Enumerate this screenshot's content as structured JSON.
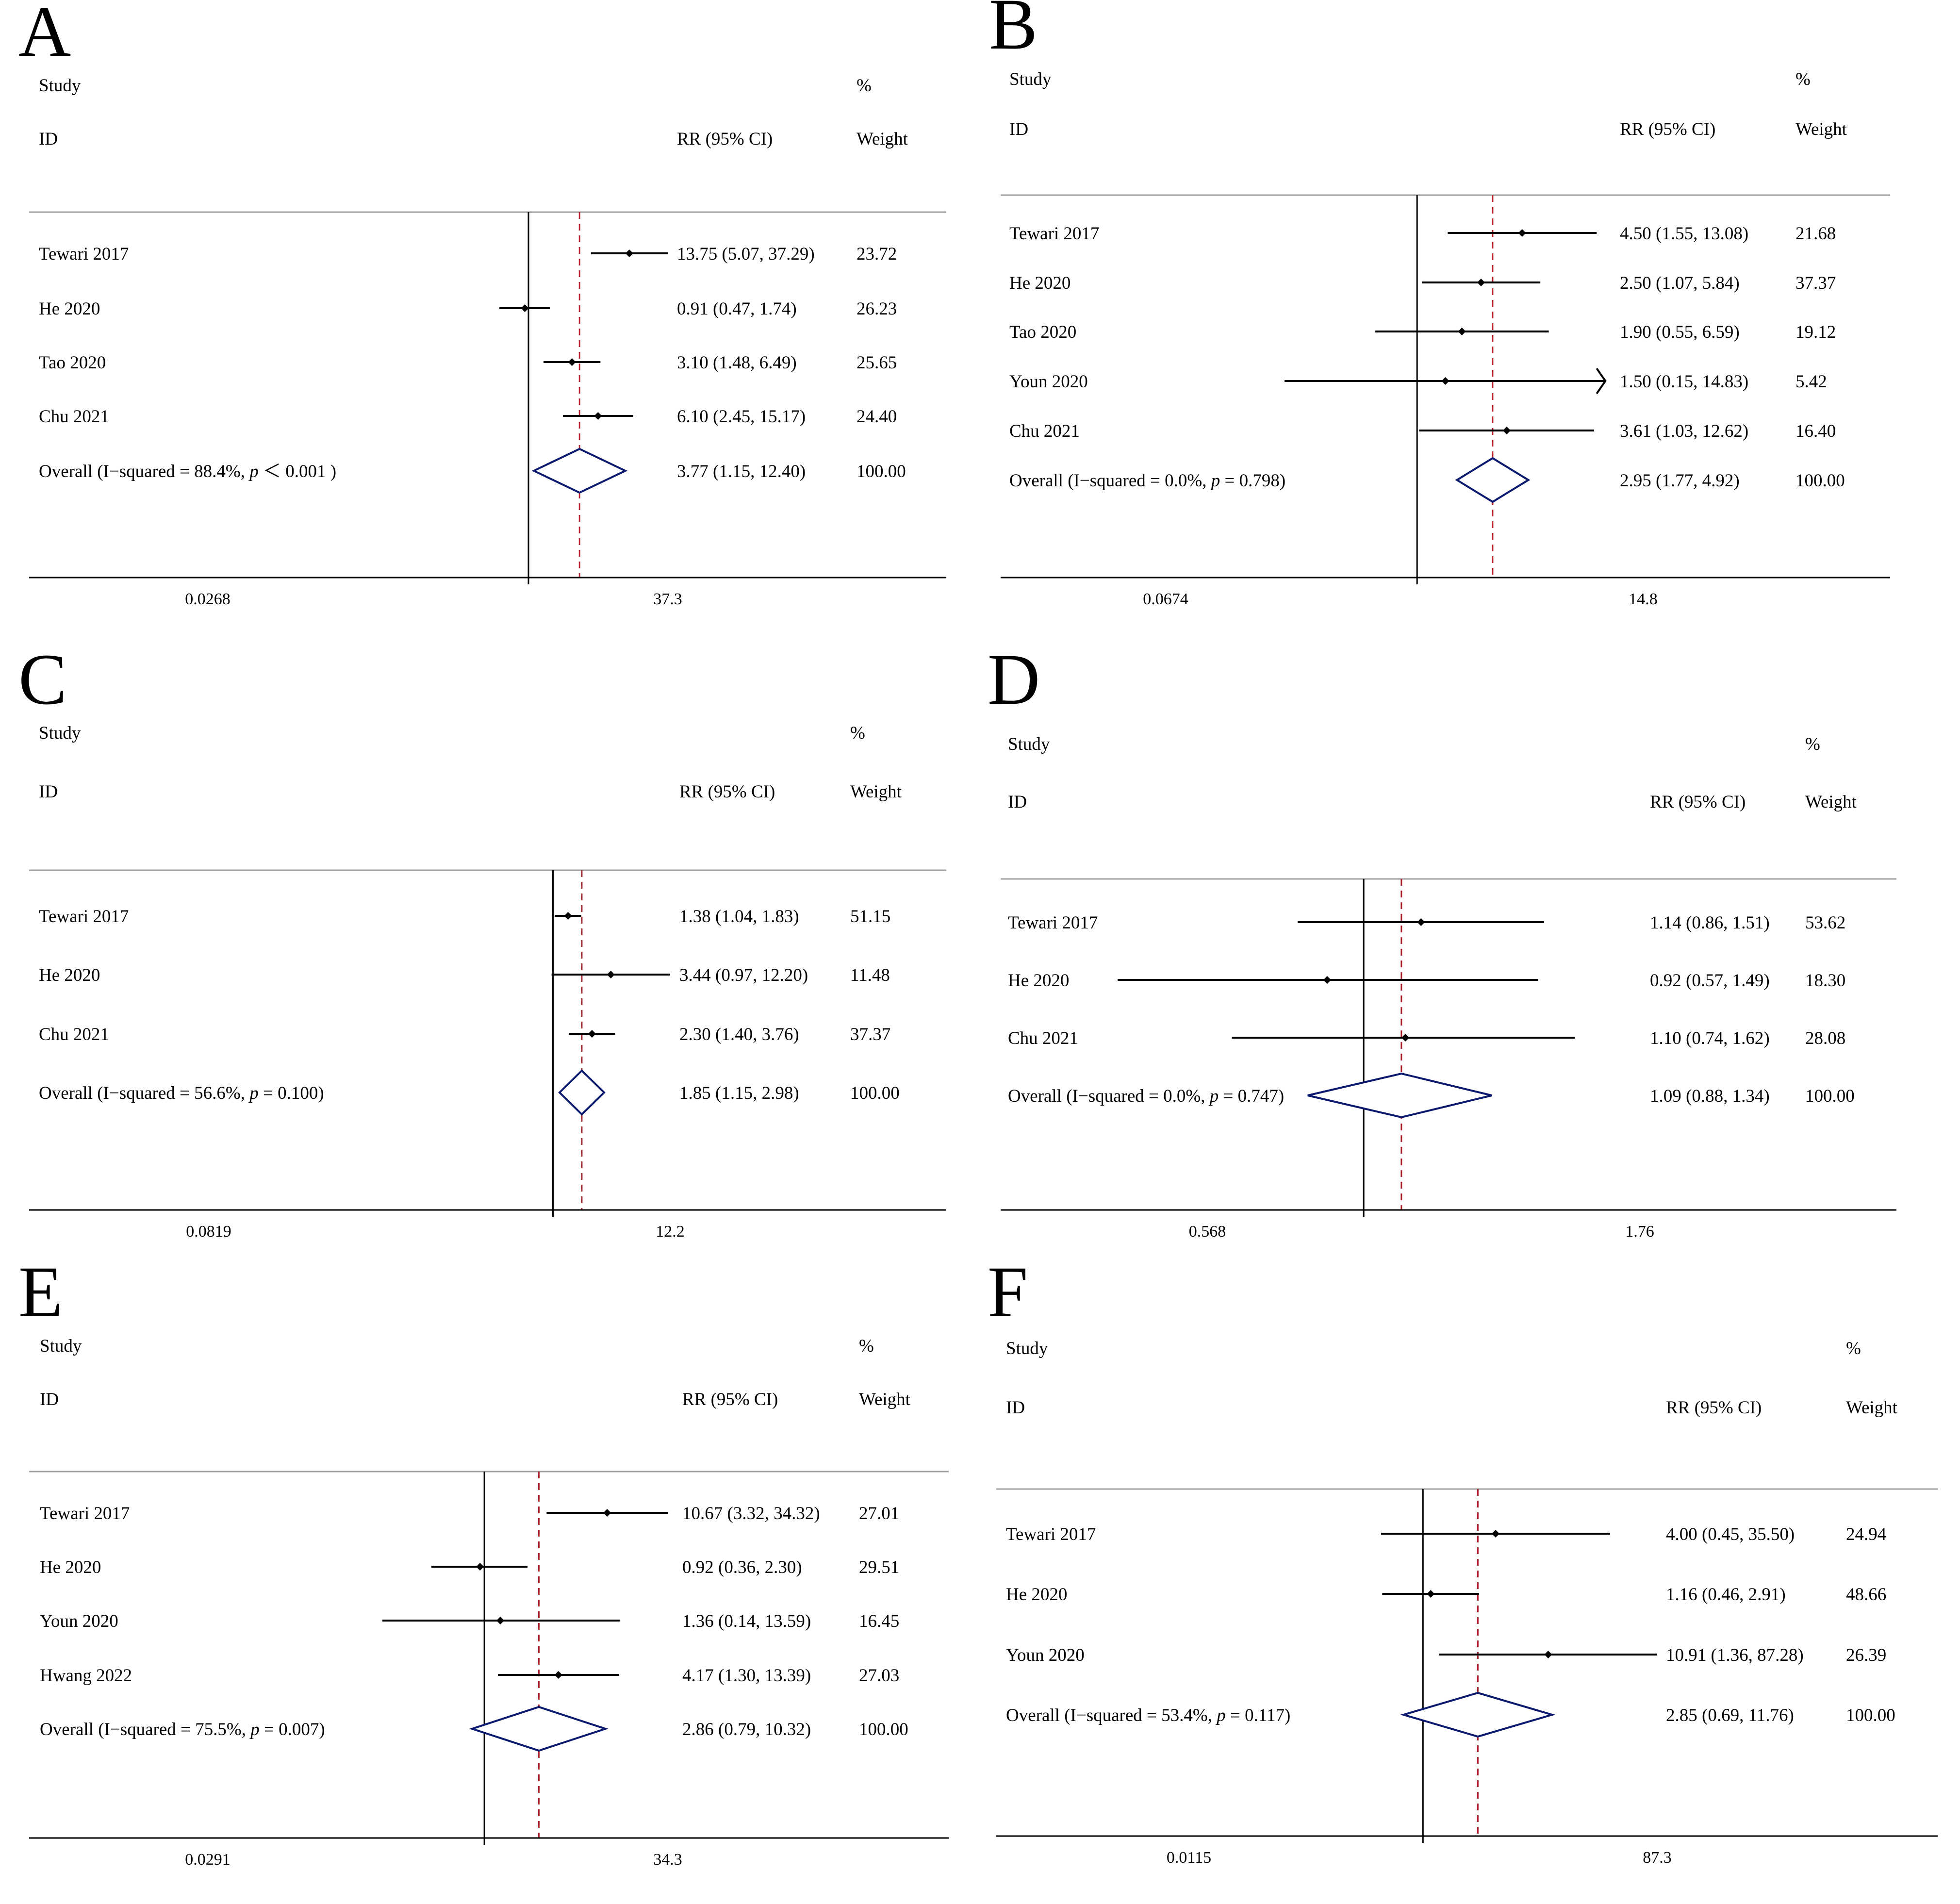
{
  "chart_data": [
    {
      "type": "forest",
      "panel": "A",
      "headers": {
        "study": "Study",
        "id": "ID",
        "effect": "RR (95% CI)",
        "pct": "%",
        "weight": "Weight"
      },
      "null_value": 1,
      "x_ticks": [
        "0.0268",
        "37.3"
      ],
      "xlim": [
        0.0268,
        37.3
      ],
      "pooled_line": 3.77,
      "studies": [
        {
          "name": "Tewari 2017",
          "rr": 13.75,
          "ci": [
            5.07,
            37.29
          ],
          "label": "13.75 (5.07, 37.29)",
          "weight": "23.72"
        },
        {
          "name": "He 2020",
          "rr": 0.91,
          "ci": [
            0.47,
            1.74
          ],
          "label": "0.91 (0.47, 1.74)",
          "weight": "26.23"
        },
        {
          "name": "Tao 2020",
          "rr": 3.1,
          "ci": [
            1.48,
            6.49
          ],
          "label": "3.10 (1.48, 6.49)",
          "weight": "25.65"
        },
        {
          "name": "Chu 2021",
          "rr": 6.1,
          "ci": [
            2.45,
            15.17
          ],
          "label": "6.10 (2.45, 15.17)",
          "weight": "24.40"
        }
      ],
      "overall": {
        "label_pre": "Overall  (I−squared = 88.4%, ",
        "p_sym": "p",
        "label_post": " ＜ 0.001 )",
        "rr": 3.77,
        "ci": [
          1.15,
          12.4
        ],
        "effect": "3.77 (1.15, 12.40)",
        "weight": "100.00"
      }
    },
    {
      "type": "forest",
      "panel": "B",
      "headers": {
        "study": "Study",
        "id": "ID",
        "effect": "RR (95% CI)",
        "pct": "%",
        "weight": "Weight"
      },
      "null_value": 1,
      "x_ticks": [
        "0.0674",
        "14.8"
      ],
      "xlim": [
        0.0674,
        14.8
      ],
      "pooled_line": 2.95,
      "studies": [
        {
          "name": "Tewari 2017",
          "rr": 4.5,
          "ci": [
            1.55,
            13.08
          ],
          "label": "4.50 (1.55, 13.08)",
          "weight": "21.68"
        },
        {
          "name": "He 2020",
          "rr": 2.5,
          "ci": [
            1.07,
            5.84
          ],
          "label": "2.50 (1.07, 5.84)",
          "weight": "37.37"
        },
        {
          "name": "Tao 2020",
          "rr": 1.9,
          "ci": [
            0.55,
            6.59
          ],
          "label": "1.90 (0.55, 6.59)",
          "weight": "19.12"
        },
        {
          "name": "Youn 2020",
          "rr": 1.5,
          "ci": [
            0.15,
            14.83
          ],
          "label": "1.50 (0.15, 14.83)",
          "weight": "5.42",
          "arrow": true
        },
        {
          "name": "Chu 2021",
          "rr": 3.61,
          "ci": [
            1.03,
            12.62
          ],
          "label": "3.61 (1.03, 12.62)",
          "weight": "16.40"
        }
      ],
      "overall": {
        "label_pre": "Overall  (I−squared = 0.0%, ",
        "p_sym": "p",
        "label_post": " = 0.798)",
        "rr": 2.95,
        "ci": [
          1.77,
          4.92
        ],
        "effect": "2.95 (1.77, 4.92)",
        "weight": "100.00"
      }
    },
    {
      "type": "forest",
      "panel": "C",
      "headers": {
        "study": "Study",
        "id": "ID",
        "effect": "RR (95% CI)",
        "pct": "%",
        "weight": "Weight"
      },
      "null_value": 1,
      "x_ticks": [
        "0.0819",
        "12.2"
      ],
      "xlim": [
        0.0819,
        12.2
      ],
      "pooled_line": 1.85,
      "studies": [
        {
          "name": "Tewari 2017",
          "rr": 1.38,
          "ci": [
            1.04,
            1.83
          ],
          "label": "1.38 (1.04, 1.83)",
          "weight": "51.15"
        },
        {
          "name": "He 2020",
          "rr": 3.44,
          "ci": [
            0.97,
            12.2
          ],
          "label": "3.44 (0.97, 12.20)",
          "weight": "11.48"
        },
        {
          "name": "Chu 2021",
          "rr": 2.3,
          "ci": [
            1.4,
            3.76
          ],
          "label": "2.30 (1.40, 3.76)",
          "weight": "37.37"
        }
      ],
      "overall": {
        "label_pre": "Overall  (I−squared = 56.6%, ",
        "p_sym": "p",
        "label_post": " = 0.100)",
        "rr": 1.85,
        "ci": [
          1.15,
          2.98
        ],
        "effect": "1.85 (1.15, 2.98)",
        "weight": "100.00"
      }
    },
    {
      "type": "forest",
      "panel": "D",
      "headers": {
        "study": "Study",
        "id": "ID",
        "effect": "RR (95% CI)",
        "pct": "%",
        "weight": "Weight"
      },
      "null_value": 1,
      "x_ticks": [
        "0.568",
        "1.76"
      ],
      "xlim": [
        0.568,
        1.76
      ],
      "pooled_line": 1.09,
      "studies": [
        {
          "name": "Tewari 2017",
          "rr": 1.14,
          "ci": [
            0.86,
            1.51
          ],
          "label": "1.14 (0.86, 1.51)",
          "weight": "53.62"
        },
        {
          "name": "He 2020",
          "rr": 0.92,
          "ci": [
            0.57,
            1.49
          ],
          "label": "0.92 (0.57, 1.49)",
          "weight": "18.30"
        },
        {
          "name": "Chu 2021",
          "rr": 1.1,
          "ci": [
            0.74,
            1.62
          ],
          "label": "1.10 (0.74, 1.62)",
          "weight": "28.08"
        }
      ],
      "overall": {
        "label_pre": "Overall  (I−squared = 0.0%, ",
        "p_sym": "p",
        "label_post": " = 0.747)",
        "rr": 1.09,
        "ci": [
          0.88,
          1.34
        ],
        "effect": "1.09 (0.88, 1.34)",
        "weight": "100.00"
      }
    },
    {
      "type": "forest",
      "panel": "E",
      "headers": {
        "study": "Study",
        "id": "ID",
        "effect": "RR (95% CI)",
        "pct": "%",
        "weight": "Weight"
      },
      "null_value": 1,
      "x_ticks": [
        "0.0291",
        "34.3"
      ],
      "xlim": [
        0.0291,
        34.3
      ],
      "pooled_line": 2.86,
      "studies": [
        {
          "name": "Tewari 2017",
          "rr": 10.67,
          "ci": [
            3.32,
            34.32
          ],
          "label": "10.67 (3.32, 34.32)",
          "weight": "27.01"
        },
        {
          "name": "He 2020",
          "rr": 0.92,
          "ci": [
            0.36,
            2.3
          ],
          "label": "0.92 (0.36, 2.30)",
          "weight": "29.51"
        },
        {
          "name": "Youn 2020",
          "rr": 1.36,
          "ci": [
            0.14,
            13.59
          ],
          "label": "1.36 (0.14, 13.59)",
          "weight": "16.45"
        },
        {
          "name": "Hwang 2022",
          "rr": 4.17,
          "ci": [
            1.3,
            13.39
          ],
          "label": "4.17 (1.30, 13.39)",
          "weight": "27.03"
        }
      ],
      "overall": {
        "label_pre": "Overall  (I−squared = 75.5%, ",
        "p_sym": "p",
        "label_post": " = 0.007)",
        "rr": 2.86,
        "ci": [
          0.79,
          10.32
        ],
        "effect": "2.86 (0.79, 10.32)",
        "weight": "100.00"
      }
    },
    {
      "type": "forest",
      "panel": "F",
      "headers": {
        "study": "Study",
        "id": "ID",
        "effect": "RR (95% CI)",
        "pct": "%",
        "weight": "Weight"
      },
      "null_value": 1,
      "x_ticks": [
        "0.0115",
        "87.3"
      ],
      "xlim": [
        0.0115,
        87.3
      ],
      "pooled_line": 2.85,
      "studies": [
        {
          "name": "Tewari 2017",
          "rr": 4.0,
          "ci": [
            0.45,
            35.5
          ],
          "label": "4.00 (0.45, 35.50)",
          "weight": "24.94"
        },
        {
          "name": "He 2020",
          "rr": 1.16,
          "ci": [
            0.46,
            2.91
          ],
          "label": "1.16 (0.46, 2.91)",
          "weight": "48.66"
        },
        {
          "name": "Youn 2020",
          "rr": 10.91,
          "ci": [
            1.36,
            87.28
          ],
          "label": "10.91 (1.36, 87.28)",
          "weight": "26.39"
        }
      ],
      "overall": {
        "label_pre": "Overall  (I−squared = 53.4%, ",
        "p_sym": "p",
        "label_post": " = 0.117)",
        "rr": 2.85,
        "ci": [
          0.69,
          11.76
        ],
        "effect": "2.85 (0.69, 11.76)",
        "weight": "100.00"
      }
    }
  ],
  "colors": {
    "ci_line": "#000000",
    "null_line": "#000000",
    "pooled_line": "#b0202a",
    "diamond": "#0b1a6e",
    "rule": "#a0a0a0"
  }
}
